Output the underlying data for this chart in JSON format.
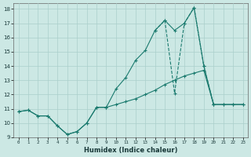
{
  "xlabel": "Humidex (Indice chaleur)",
  "background_color": "#cce8e4",
  "grid_color": "#aacfcb",
  "line_color": "#1a7a6e",
  "xlim": [
    -0.5,
    23.5
  ],
  "ylim": [
    9,
    18.4
  ],
  "xticks": [
    0,
    1,
    2,
    3,
    4,
    5,
    6,
    7,
    8,
    9,
    10,
    11,
    12,
    13,
    14,
    15,
    16,
    17,
    18,
    19,
    20,
    21,
    22,
    23
  ],
  "yticks": [
    9,
    10,
    11,
    12,
    13,
    14,
    15,
    16,
    17,
    18
  ],
  "line1_x": [
    0,
    1,
    2,
    3,
    4,
    5,
    6,
    7,
    8,
    9,
    10,
    11,
    12,
    13,
    14,
    15,
    16,
    17,
    18,
    19,
    20,
    21,
    22,
    23
  ],
  "line1_y": [
    10.8,
    10.9,
    10.5,
    10.5,
    9.8,
    9.2,
    9.4,
    10.0,
    11.1,
    11.1,
    11.3,
    11.5,
    11.7,
    12.0,
    12.3,
    12.7,
    13.0,
    13.3,
    13.5,
    13.7,
    11.3,
    11.3,
    11.3,
    11.3
  ],
  "line2_x": [
    0,
    1,
    2,
    3,
    4,
    5,
    6,
    7,
    8,
    9,
    10,
    11,
    12,
    13,
    14,
    15,
    16,
    17,
    18,
    19,
    20,
    21,
    22,
    23
  ],
  "line2_y": [
    10.8,
    10.9,
    10.5,
    10.5,
    9.8,
    9.2,
    9.4,
    10.0,
    11.1,
    11.1,
    12.4,
    13.2,
    14.4,
    15.1,
    16.5,
    17.2,
    16.5,
    17.0,
    18.1,
    14.0,
    11.3,
    11.3,
    11.3,
    11.3
  ],
  "line3_x": [
    14,
    15,
    16,
    17,
    18,
    19,
    20
  ],
  "line3_y": [
    16.5,
    17.2,
    12.1,
    17.0,
    18.1,
    14.0,
    11.3
  ]
}
